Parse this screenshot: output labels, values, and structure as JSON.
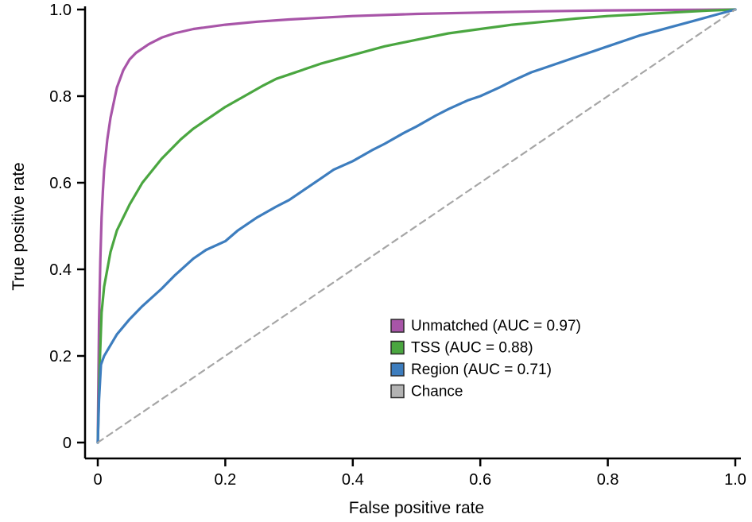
{
  "chart_data": {
    "type": "line",
    "subtype": "roc-curves",
    "title": "",
    "xlabel": "False positive rate",
    "ylabel": "True positive rate",
    "xlim": [
      0,
      1
    ],
    "ylim": [
      0,
      1
    ],
    "grid": false,
    "legend_position": "inside-lower-right",
    "x_ticks": {
      "values": [
        0,
        0.2,
        0.4,
        0.6,
        0.8,
        1.0
      ],
      "labels": [
        "0",
        "0.2",
        "0.4",
        "0.6",
        "0.8",
        "1.0"
      ]
    },
    "y_ticks": {
      "values": [
        0,
        0.2,
        0.4,
        0.6,
        0.8,
        1.0
      ],
      "labels": [
        "0",
        "0.2",
        "0.4",
        "0.6",
        "0.8",
        "1.0"
      ]
    },
    "series": [
      {
        "name": "Unmatched",
        "label": "Unmatched (AUC = 0.97)",
        "auc": 0.97,
        "color": "#a855a8",
        "style": "solid",
        "points": [
          [
            0,
            0
          ],
          [
            0.002,
            0.28
          ],
          [
            0.004,
            0.42
          ],
          [
            0.006,
            0.52
          ],
          [
            0.008,
            0.58
          ],
          [
            0.01,
            0.63
          ],
          [
            0.015,
            0.7
          ],
          [
            0.02,
            0.75
          ],
          [
            0.03,
            0.82
          ],
          [
            0.04,
            0.86
          ],
          [
            0.05,
            0.885
          ],
          [
            0.06,
            0.9
          ],
          [
            0.08,
            0.92
          ],
          [
            0.1,
            0.935
          ],
          [
            0.12,
            0.945
          ],
          [
            0.15,
            0.955
          ],
          [
            0.2,
            0.965
          ],
          [
            0.25,
            0.972
          ],
          [
            0.3,
            0.977
          ],
          [
            0.4,
            0.985
          ],
          [
            0.5,
            0.99
          ],
          [
            0.6,
            0.993
          ],
          [
            0.7,
            0.996
          ],
          [
            0.8,
            0.998
          ],
          [
            0.9,
            0.999
          ],
          [
            1.0,
            1.0
          ]
        ]
      },
      {
        "name": "TSS",
        "label": "TSS (AUC = 0.88)",
        "auc": 0.88,
        "color": "#4aa640",
        "style": "solid",
        "points": [
          [
            0,
            0
          ],
          [
            0.003,
            0.18
          ],
          [
            0.006,
            0.3
          ],
          [
            0.01,
            0.36
          ],
          [
            0.02,
            0.44
          ],
          [
            0.03,
            0.49
          ],
          [
            0.05,
            0.55
          ],
          [
            0.07,
            0.6
          ],
          [
            0.1,
            0.655
          ],
          [
            0.13,
            0.7
          ],
          [
            0.15,
            0.725
          ],
          [
            0.18,
            0.755
          ],
          [
            0.2,
            0.775
          ],
          [
            0.23,
            0.8
          ],
          [
            0.26,
            0.825
          ],
          [
            0.28,
            0.84
          ],
          [
            0.3,
            0.85
          ],
          [
            0.35,
            0.875
          ],
          [
            0.4,
            0.895
          ],
          [
            0.45,
            0.915
          ],
          [
            0.5,
            0.93
          ],
          [
            0.55,
            0.945
          ],
          [
            0.6,
            0.955
          ],
          [
            0.65,
            0.965
          ],
          [
            0.7,
            0.972
          ],
          [
            0.75,
            0.979
          ],
          [
            0.8,
            0.985
          ],
          [
            0.85,
            0.989
          ],
          [
            0.9,
            0.993
          ],
          [
            0.95,
            0.997
          ],
          [
            1.0,
            1.0
          ]
        ]
      },
      {
        "name": "Region",
        "label": "Region (AUC = 0.71)",
        "auc": 0.71,
        "color": "#3d7dbe",
        "style": "solid",
        "points": [
          [
            0,
            0
          ],
          [
            0.002,
            0.1
          ],
          [
            0.005,
            0.18
          ],
          [
            0.01,
            0.2
          ],
          [
            0.02,
            0.225
          ],
          [
            0.03,
            0.25
          ],
          [
            0.05,
            0.285
          ],
          [
            0.07,
            0.315
          ],
          [
            0.1,
            0.355
          ],
          [
            0.12,
            0.385
          ],
          [
            0.15,
            0.425
          ],
          [
            0.17,
            0.445
          ],
          [
            0.2,
            0.465
          ],
          [
            0.22,
            0.49
          ],
          [
            0.25,
            0.52
          ],
          [
            0.28,
            0.545
          ],
          [
            0.3,
            0.56
          ],
          [
            0.33,
            0.59
          ],
          [
            0.35,
            0.61
          ],
          [
            0.37,
            0.63
          ],
          [
            0.4,
            0.65
          ],
          [
            0.43,
            0.675
          ],
          [
            0.45,
            0.69
          ],
          [
            0.48,
            0.715
          ],
          [
            0.5,
            0.73
          ],
          [
            0.53,
            0.755
          ],
          [
            0.55,
            0.77
          ],
          [
            0.58,
            0.79
          ],
          [
            0.6,
            0.8
          ],
          [
            0.63,
            0.82
          ],
          [
            0.65,
            0.835
          ],
          [
            0.68,
            0.855
          ],
          [
            0.7,
            0.865
          ],
          [
            0.73,
            0.88
          ],
          [
            0.75,
            0.89
          ],
          [
            0.78,
            0.905
          ],
          [
            0.8,
            0.915
          ],
          [
            0.83,
            0.93
          ],
          [
            0.85,
            0.94
          ],
          [
            0.88,
            0.952
          ],
          [
            0.9,
            0.96
          ],
          [
            0.93,
            0.972
          ],
          [
            0.95,
            0.98
          ],
          [
            0.97,
            0.988
          ],
          [
            1.0,
            1.0
          ]
        ]
      },
      {
        "name": "Chance",
        "label": "Chance",
        "color": "#a6a6a6",
        "swatch_color": "#b3b3b3",
        "style": "dashed",
        "points": [
          [
            0,
            0
          ],
          [
            1,
            1
          ]
        ]
      }
    ]
  }
}
